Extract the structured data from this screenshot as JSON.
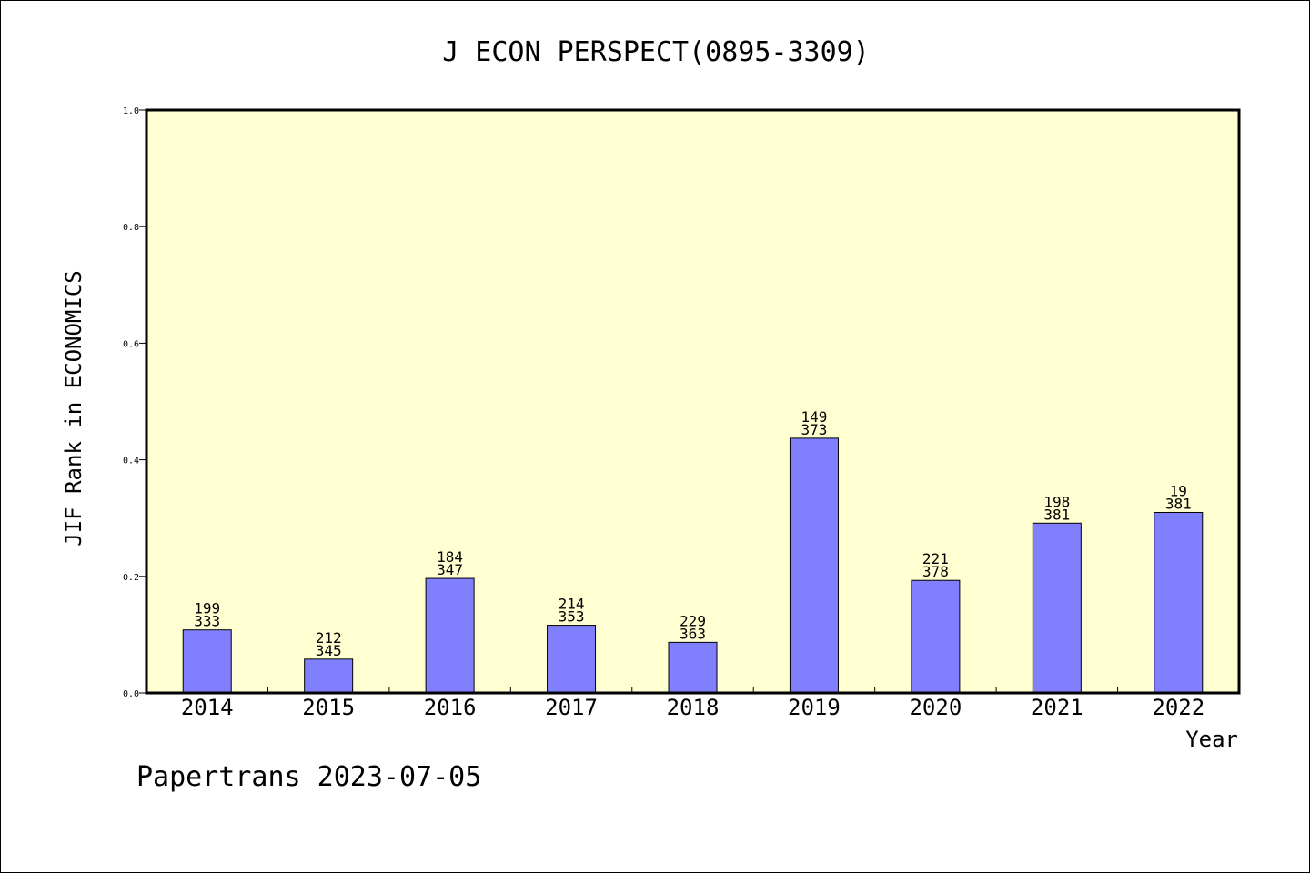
{
  "chart_data": {
    "type": "bar",
    "title": "J ECON PERSPECT(0895-3309)",
    "xlabel": "Year",
    "ylabel": "JIF Rank in ECONOMICS",
    "ylim": [
      0,
      1.0
    ],
    "yticks": [
      "0.0",
      "0.2",
      "0.4",
      "0.6",
      "0.8",
      "1.0"
    ],
    "grid": false,
    "categories": [
      "2014",
      "2015",
      "2016",
      "2017",
      "2018",
      "2019",
      "2020",
      "2021",
      "2022"
    ],
    "values": [
      0.1081,
      0.058,
      0.1965,
      0.1161,
      0.0868,
      0.437,
      0.1931,
      0.2913,
      0.3097
    ],
    "bar_labels": [
      {
        "rank": "199",
        "total": "333"
      },
      {
        "rank": "212",
        "total": "345"
      },
      {
        "rank": "184",
        "total": "347"
      },
      {
        "rank": "214",
        "total": "353"
      },
      {
        "rank": "229",
        "total": "363"
      },
      {
        "rank": "149",
        "total": "373"
      },
      {
        "rank": "221",
        "total": "378"
      },
      {
        "rank": "198",
        "total": "381"
      },
      {
        "rank": "19",
        "total": "381"
      }
    ],
    "colors": {
      "plot_background": "#ffffd2",
      "bar_fill": "#8080ff",
      "bar_stroke": "#000000"
    }
  },
  "footer": {
    "text": "Papertrans 2023-07-05"
  }
}
